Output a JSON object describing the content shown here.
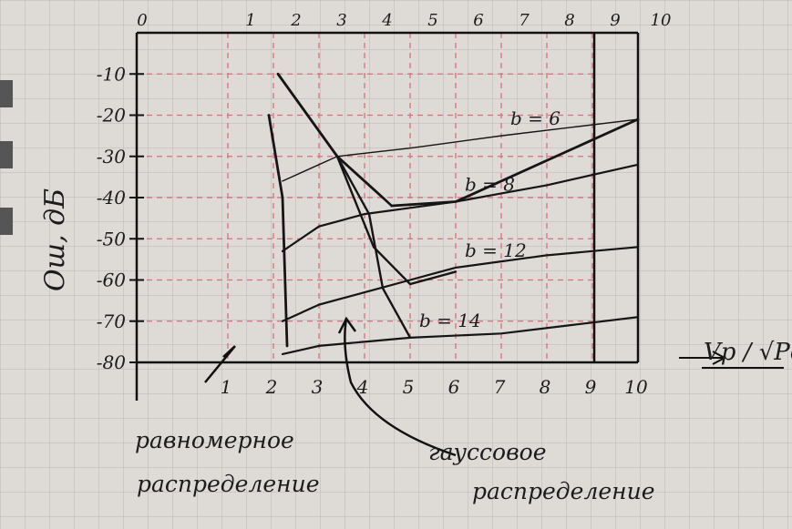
{
  "chart_data": {
    "type": "line",
    "title": "",
    "xlabel": "Vp / √Pc",
    "ylabel": "Ош, дБ",
    "xlim": [
      0,
      10
    ],
    "ylim": [
      -80,
      0
    ],
    "x_ticks_bottom": [
      "1",
      "2",
      "3",
      "4",
      "5",
      "6",
      "7",
      "8",
      "9",
      "10"
    ],
    "x_ticks_top": [
      "0",
      "1",
      "2",
      "3",
      "4",
      "5",
      "6",
      "7",
      "8",
      "9",
      "10"
    ],
    "y_ticks": [
      "-10",
      "-20",
      "-30",
      "-40",
      "-50",
      "-60",
      "-70",
      "-80"
    ],
    "grid": true,
    "series": [
      {
        "name": "b = 6",
        "x": [
          2.2,
          3.4,
          5,
          7,
          10
        ],
        "y": [
          -36,
          -30,
          -28,
          -25,
          -21
        ]
      },
      {
        "name": "b = 8",
        "x": [
          2.2,
          3,
          4,
          6,
          8,
          10
        ],
        "y": [
          -53,
          -47,
          -44,
          -41,
          -37,
          -32
        ]
      },
      {
        "name": "b = 12",
        "x": [
          2.2,
          3,
          4,
          5,
          6,
          8,
          10
        ],
        "y": [
          -70,
          -66,
          -63,
          -60,
          -57,
          -54,
          -52
        ]
      },
      {
        "name": "b = 14",
        "x": [
          2.2,
          3,
          4,
          5,
          7,
          10
        ],
        "y": [
          -78,
          -76,
          -75,
          -74,
          -73,
          -69
        ]
      },
      {
        "name": "равномерное распределение",
        "x": [
          1.9,
          2.2,
          2.3
        ],
        "y": [
          -20,
          -40,
          -76
        ]
      },
      {
        "name": "гауссовое распределение",
        "x": [
          2.1,
          3.4,
          4.6,
          6,
          10
        ],
        "y": [
          -10,
          -30,
          -42,
          -41,
          -21
        ]
      },
      {
        "name": "",
        "x": [
          3.4,
          4.2,
          5,
          6
        ],
        "y": [
          -30,
          -52,
          -61,
          -58
        ]
      },
      {
        "name": "",
        "x": [
          3.4,
          4.1,
          4.4,
          5
        ],
        "y": [
          -30,
          -44,
          -62,
          -74
        ]
      }
    ],
    "annotations": [
      "равномерное распределение",
      "гауссовое распределение"
    ]
  }
}
